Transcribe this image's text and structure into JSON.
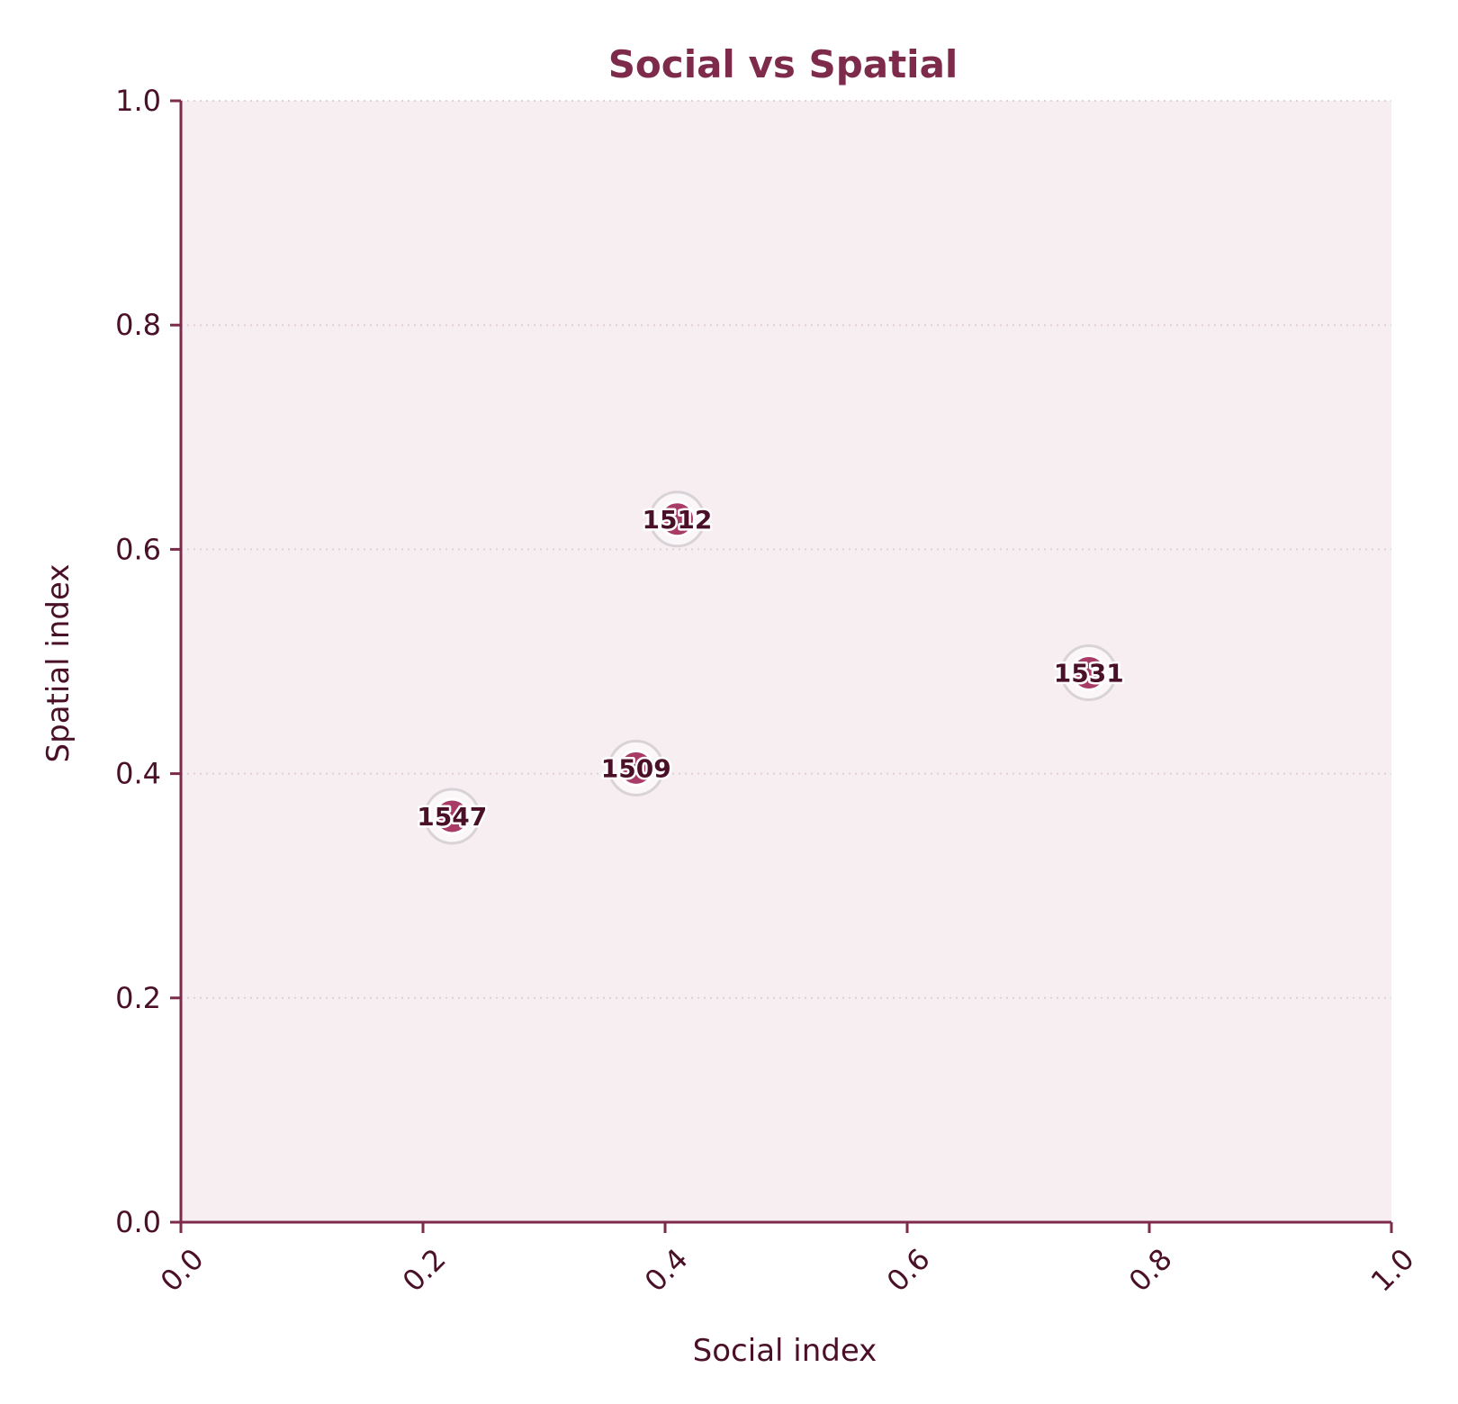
{
  "chart_data": {
    "type": "scatter",
    "title": "Social vs Spatial",
    "xlabel": "Social index",
    "ylabel": "Spatial index",
    "xlim": [
      0,
      1
    ],
    "ylim": [
      0,
      1
    ],
    "xticks": [
      "0.0",
      "0.2",
      "0.4",
      "0.6",
      "0.8",
      "1.0"
    ],
    "yticks": [
      "0.0",
      "0.2",
      "0.4",
      "0.6",
      "0.8",
      "1.0"
    ],
    "grid": "y-dotted",
    "points": [
      {
        "label": "1547",
        "x": 0.224,
        "y": 0.362
      },
      {
        "label": "1509",
        "x": 0.376,
        "y": 0.405
      },
      {
        "label": "1512",
        "x": 0.41,
        "y": 0.627
      },
      {
        "label": "1531",
        "x": 0.75,
        "y": 0.49
      }
    ],
    "colors": {
      "marker": "#a83c66",
      "axes": "#7d2a4b",
      "plot_background": "#f7eef2",
      "text": "#4a1028",
      "title": "#7d2a4b"
    }
  }
}
